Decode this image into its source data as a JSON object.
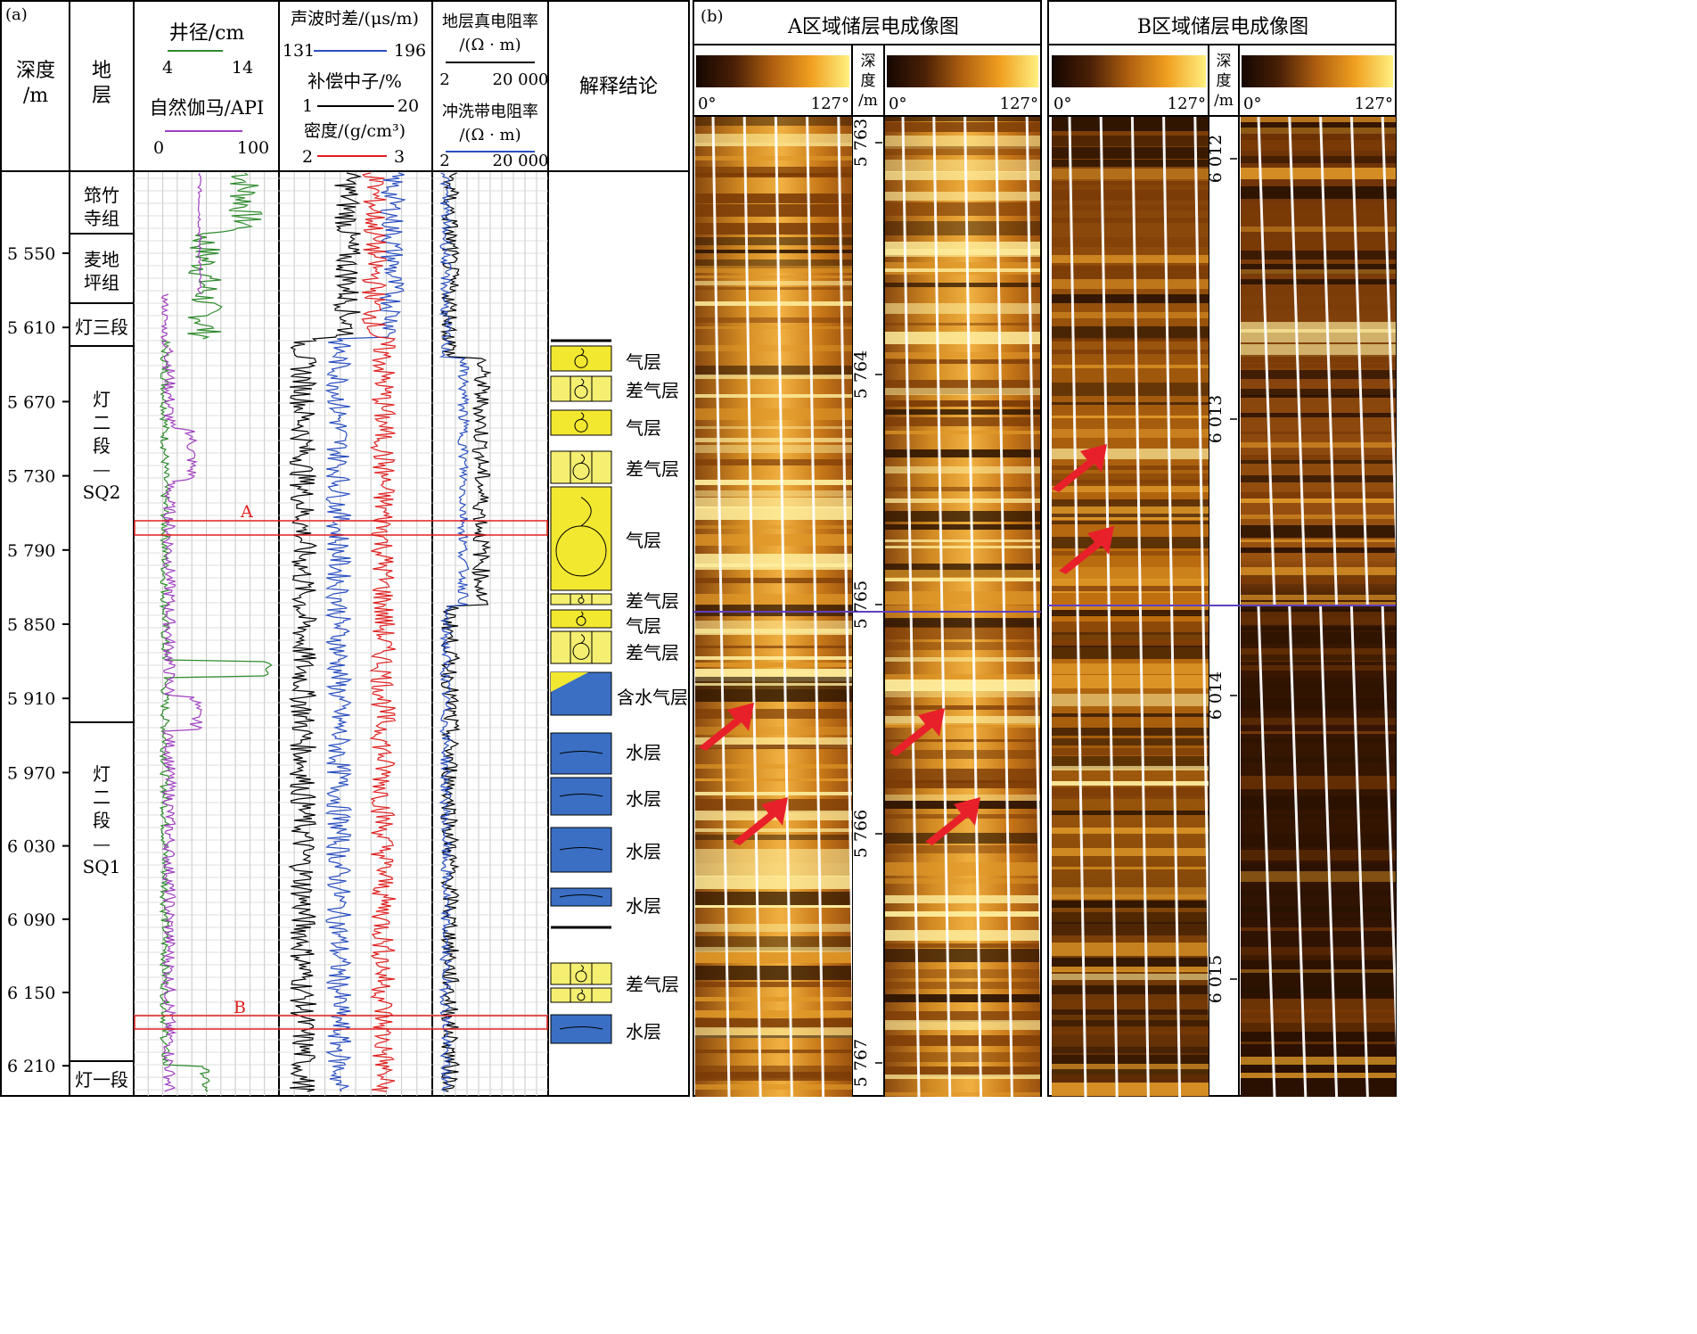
{
  "panel_a": {
    "label": "(a)",
    "headers": {
      "depth": [
        "深度",
        "/m"
      ],
      "stratum": [
        "地",
        "层"
      ],
      "caliper": {
        "name": "井径/cm",
        "min": "4",
        "max": "14",
        "color": "#2e8b2e"
      },
      "gamma": {
        "name": "自然伽马/API",
        "min": "0",
        "max": "100",
        "color": "#a040c0"
      },
      "sonic": {
        "name": "声波时差/(μs/m)",
        "min": "131",
        "max": "196",
        "color": "#2a4fc0"
      },
      "neutron": {
        "name": "补偿中子/%",
        "min": "1",
        "max": "20",
        "color": "#000000"
      },
      "density": {
        "name": "密度/(g/cm³)",
        "min": "2",
        "max": "3",
        "color": "#e02020"
      },
      "rt": {
        "name": "地层真电阻率",
        "unit": "/(Ω · m)",
        "min": "2",
        "max": "20 000",
        "color": "#000000"
      },
      "rxo": {
        "name": "冲洗带电阻率",
        "unit": "/(Ω · m)",
        "min": "2",
        "max": "20 000",
        "color": "#2a4fc0"
      },
      "interp": "解释结论"
    },
    "depth_ticks": [
      "5 550",
      "5 610",
      "5 670",
      "5 730",
      "5 790",
      "5 850",
      "5 910",
      "5 970",
      "6 030",
      "6 090",
      "6 150",
      "6 210"
    ],
    "strata": [
      {
        "name": [
          "筇竹",
          "寺组"
        ]
      },
      {
        "name": [
          "麦地",
          "坪组"
        ]
      },
      {
        "name": [
          "灯三段"
        ]
      },
      {
        "name": [
          "灯",
          "二",
          "段",
          "—",
          "SQ2"
        ]
      },
      {
        "name": [
          "灯",
          "二",
          "段",
          "—",
          "SQ1"
        ]
      },
      {
        "name": [
          "灯一段"
        ]
      }
    ],
    "intervals": [
      {
        "label": "气层",
        "type": "gas"
      },
      {
        "label": "差气层",
        "type": "poor"
      },
      {
        "label": "气层",
        "type": "gas"
      },
      {
        "label": "差气层",
        "type": "poor"
      },
      {
        "label": "气层",
        "type": "gas"
      },
      {
        "label": "差气层",
        "type": "poor"
      },
      {
        "label": "气层",
        "type": "gas"
      },
      {
        "label": "差气层",
        "type": "poor"
      },
      {
        "label": "含水气层",
        "type": "gw"
      },
      {
        "label": "水层",
        "type": "water"
      },
      {
        "label": "水层",
        "type": "water"
      },
      {
        "label": "水层",
        "type": "water"
      },
      {
        "label": "水层",
        "type": "water"
      },
      {
        "label": "差气层",
        "type": "poor"
      },
      {
        "label": "差气层",
        "type": "poor"
      },
      {
        "label": "水层",
        "type": "water"
      }
    ],
    "markers": [
      "A",
      "B"
    ]
  },
  "panel_b": {
    "label": "(b)",
    "title_a": "A区域储层电成像图",
    "title_b": "B区域储层电成像图",
    "depth_header": [
      "深",
      "度",
      "/m"
    ],
    "scale_min": "0°",
    "scale_max": "127°",
    "depths_a": [
      "5 763",
      "5 764",
      "5 765",
      "5 766",
      "5 767"
    ],
    "depths_b": [
      "6 012",
      "6 013",
      "6 014",
      "6 015"
    ]
  },
  "colors": {
    "gas_fill": "#f2e830",
    "poor_fill": "#f4ef70",
    "water_fill": "#3a6fc4",
    "marker_box": "#e02020",
    "arrow": "#e8202a",
    "image_dark": "#2a1200",
    "image_mid": "#c07010",
    "image_light": "#fff0a0"
  }
}
